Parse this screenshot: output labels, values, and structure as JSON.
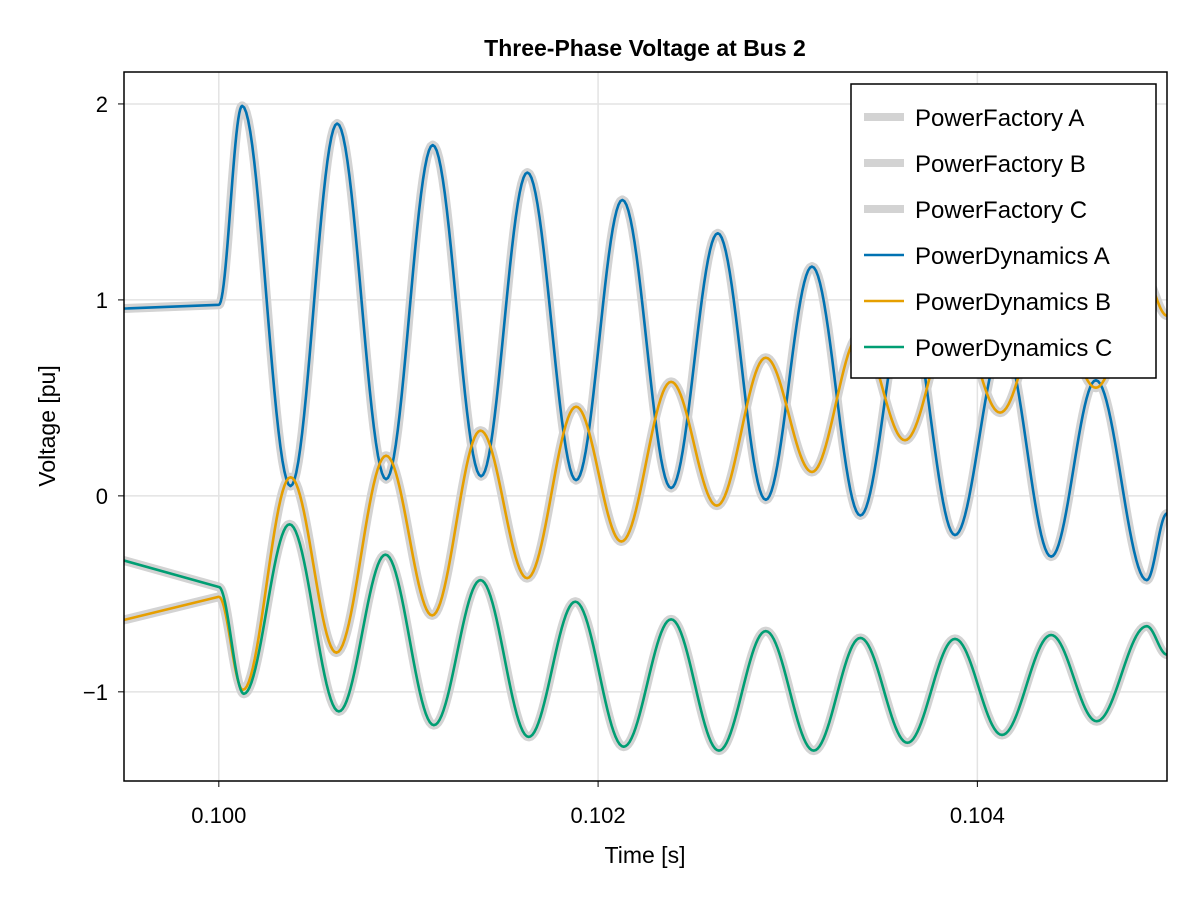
{
  "chart_data": {
    "type": "line",
    "title": "Three-Phase Voltage at Bus 2",
    "xlabel": "Time [s]",
    "ylabel": "Voltage [pu]",
    "xlim": [
      0.0995,
      0.105
    ],
    "ylim": [
      -1.455,
      2.163
    ],
    "xticks": [
      0.1,
      0.102,
      0.104
    ],
    "xtick_labels": [
      "0.100",
      "0.102",
      "0.104"
    ],
    "yticks": [
      2,
      1,
      0,
      -1
    ],
    "ytick_labels": [
      "2",
      "1",
      "0",
      "−1"
    ],
    "grid": true,
    "legend_position": "top-right",
    "phases": {
      "A": [
        [
          0.0995,
          0.956
        ],
        [
          0.1,
          0.975
        ],
        [
          0.100123,
          1.99
        ],
        [
          0.100378,
          0.05
        ],
        [
          0.100624,
          1.9
        ],
        [
          0.100882,
          0.085
        ],
        [
          0.101128,
          1.79
        ],
        [
          0.101383,
          0.1
        ],
        [
          0.101627,
          1.65
        ],
        [
          0.101884,
          0.08
        ],
        [
          0.102128,
          1.51
        ],
        [
          0.102385,
          0.04
        ],
        [
          0.102631,
          1.34
        ],
        [
          0.102884,
          -0.02
        ],
        [
          0.103128,
          1.17
        ],
        [
          0.103383,
          -0.1
        ],
        [
          0.103628,
          0.98
        ],
        [
          0.103882,
          -0.2
        ],
        [
          0.104136,
          0.78
        ],
        [
          0.104389,
          -0.31
        ],
        [
          0.104625,
          0.59
        ],
        [
          0.104893,
          -0.43
        ],
        [
          0.105,
          -0.09
        ]
      ],
      "B": [
        [
          0.0995,
          -0.633
        ],
        [
          0.1,
          -0.515
        ],
        [
          0.100127,
          -0.99
        ],
        [
          0.100378,
          0.095
        ],
        [
          0.10062,
          -0.8
        ],
        [
          0.100882,
          0.205
        ],
        [
          0.101125,
          -0.61
        ],
        [
          0.10138,
          0.333
        ],
        [
          0.101626,
          -0.42
        ],
        [
          0.101884,
          0.455
        ],
        [
          0.102123,
          -0.233
        ],
        [
          0.102385,
          0.582
        ],
        [
          0.102626,
          -0.05
        ],
        [
          0.102884,
          0.705
        ],
        [
          0.103128,
          0.122
        ],
        [
          0.10338,
          0.82
        ],
        [
          0.103618,
          0.284
        ],
        [
          0.10388,
          0.93
        ],
        [
          0.10412,
          0.425
        ],
        [
          0.10438,
          1.03
        ],
        [
          0.104625,
          0.552
        ],
        [
          0.10488,
          1.12
        ],
        [
          0.105,
          0.92
        ]
      ],
      "C": [
        [
          0.0995,
          -0.33
        ],
        [
          0.1,
          -0.465
        ],
        [
          0.100132,
          -1.01
        ],
        [
          0.100373,
          -0.145
        ],
        [
          0.100633,
          -1.1
        ],
        [
          0.100879,
          -0.3
        ],
        [
          0.101134,
          -1.17
        ],
        [
          0.10138,
          -0.43
        ],
        [
          0.101634,
          -1.23
        ],
        [
          0.10188,
          -0.54
        ],
        [
          0.102135,
          -1.28
        ],
        [
          0.102385,
          -0.63
        ],
        [
          0.102637,
          -1.3
        ],
        [
          0.102884,
          -0.69
        ],
        [
          0.103137,
          -1.3
        ],
        [
          0.103383,
          -0.725
        ],
        [
          0.103631,
          -1.26
        ],
        [
          0.103882,
          -0.73
        ],
        [
          0.10413,
          -1.22
        ],
        [
          0.104389,
          -0.71
        ],
        [
          0.104629,
          -1.15
        ],
        [
          0.104893,
          -0.665
        ],
        [
          0.105,
          -0.81
        ]
      ]
    },
    "series": [
      {
        "name": "PowerFactory A",
        "phase": "A",
        "color": "#d3d3d3",
        "style": "wide"
      },
      {
        "name": "PowerFactory B",
        "phase": "B",
        "color": "#d3d3d3",
        "style": "wide"
      },
      {
        "name": "PowerFactory C",
        "phase": "C",
        "color": "#d3d3d3",
        "style": "wide"
      },
      {
        "name": "PowerDynamics A",
        "phase": "A",
        "color": "#0072b2",
        "style": "thin"
      },
      {
        "name": "PowerDynamics B",
        "phase": "B",
        "color": "#e69f00",
        "style": "thin"
      },
      {
        "name": "PowerDynamics C",
        "phase": "C",
        "color": "#009e73",
        "style": "thin"
      }
    ]
  }
}
